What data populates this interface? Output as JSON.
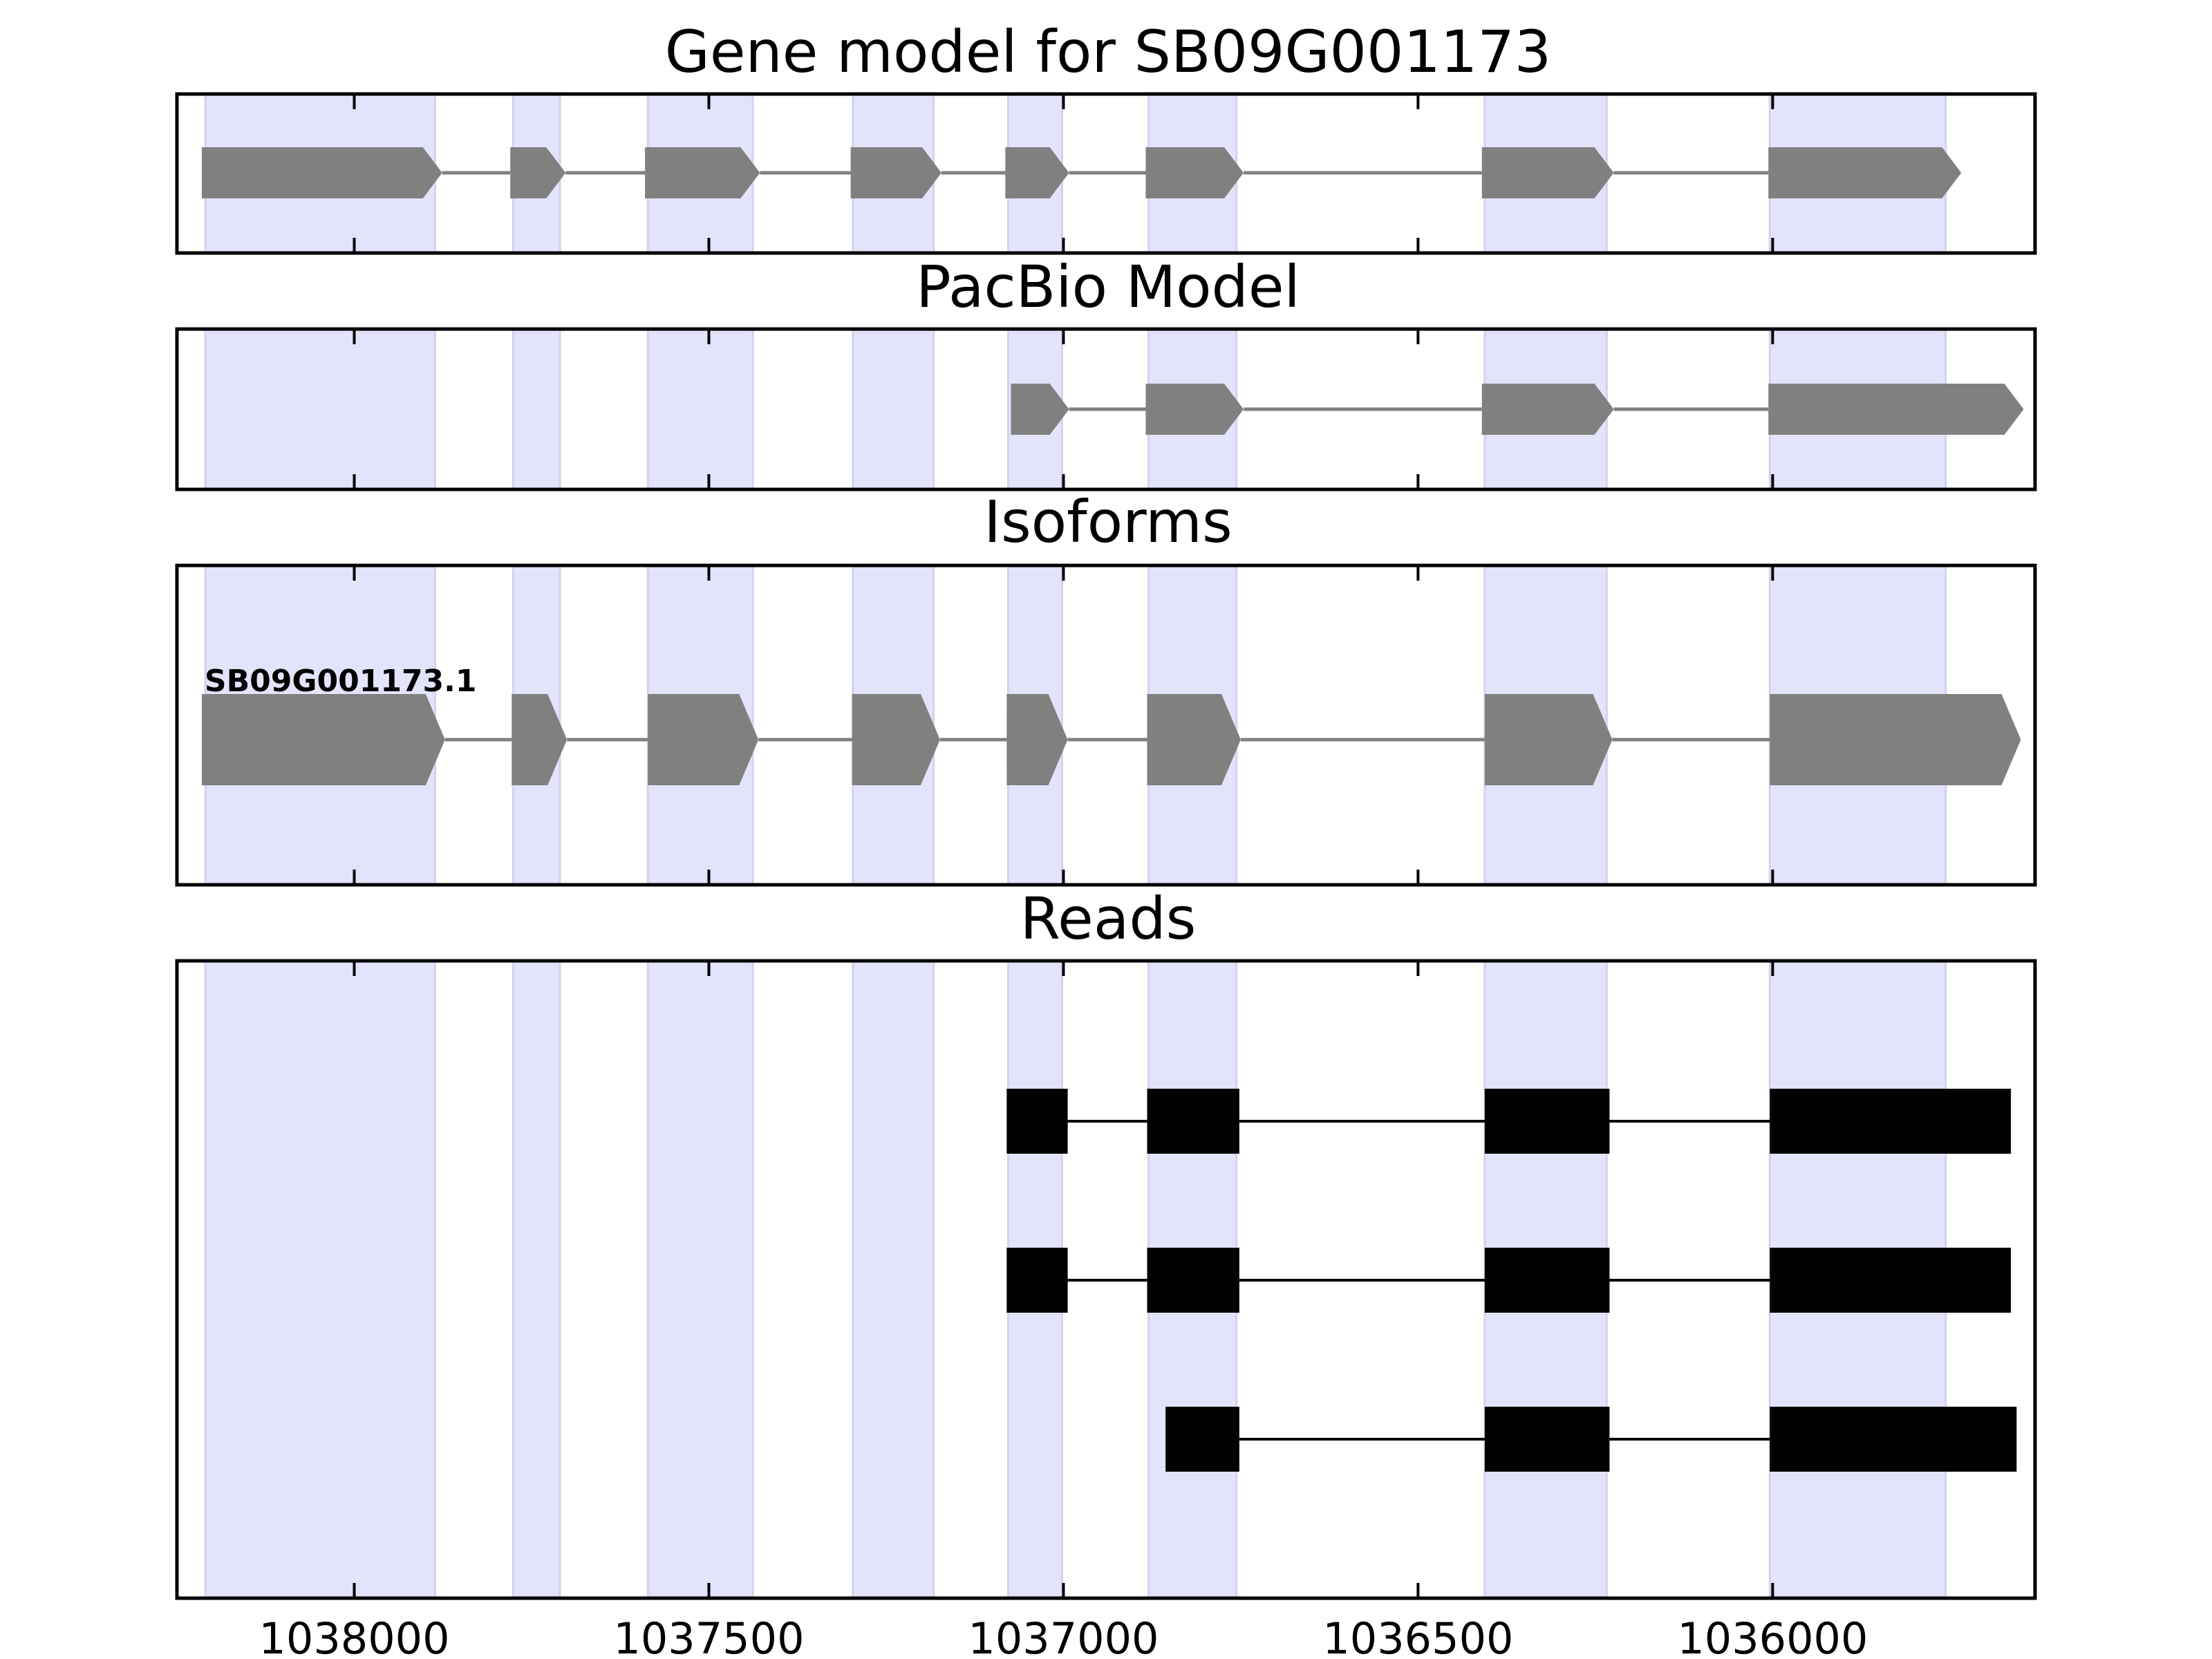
{
  "chart_data": {
    "type": "gene-structure",
    "x_axis": {
      "range": [
        1038250,
        1035630
      ],
      "ticks": [
        1038000,
        1037500,
        1037000,
        1036500,
        1036000
      ],
      "tick_labels": [
        "1038000",
        "1037500",
        "1037000",
        "1036500",
        "1036000"
      ]
    },
    "highlight_color": "#e3e3fc",
    "feature_color": "#808080",
    "read_color": "#000000",
    "shaded_exons": [
      [
        1038210,
        1037886
      ],
      [
        1037776,
        1037710
      ],
      [
        1037586,
        1037438
      ],
      [
        1037297,
        1037183
      ],
      [
        1037078,
        1037002
      ],
      [
        1036880,
        1036756
      ],
      [
        1036406,
        1036234
      ],
      [
        1036004,
        1035756
      ]
    ],
    "panels": [
      {
        "title": "Gene model for SB09G001173",
        "tracks": [
          {
            "label": "",
            "exons": [
              [
                1038215,
                1037876
              ],
              [
                1037780,
                1037702
              ],
              [
                1037590,
                1037428
              ],
              [
                1037300,
                1037172
              ],
              [
                1037082,
                1036992
              ],
              [
                1036884,
                1036746
              ],
              [
                1036410,
                1036224
              ],
              [
                1036006,
                1035734
              ]
            ]
          }
        ]
      },
      {
        "title": "PacBio Model",
        "tracks": [
          {
            "label": "",
            "exons": [
              [
                1037074,
                1036992
              ],
              [
                1036884,
                1036746
              ],
              [
                1036410,
                1036224
              ],
              [
                1036006,
                1035646
              ]
            ]
          }
        ]
      },
      {
        "title": "Isoforms",
        "tracks": [
          {
            "label": "SB09G001173.1",
            "exons": [
              [
                1038215,
                1037872
              ],
              [
                1037778,
                1037700
              ],
              [
                1037586,
                1037430
              ],
              [
                1037298,
                1037174
              ],
              [
                1037080,
                1036994
              ],
              [
                1036882,
                1036750
              ],
              [
                1036406,
                1036226
              ],
              [
                1036004,
                1035650
              ]
            ]
          }
        ]
      },
      {
        "title": "Reads",
        "tracks": [
          {
            "exons": [
              [
                1037080,
                1036994
              ],
              [
                1036882,
                1036752
              ],
              [
                1036406,
                1036230
              ],
              [
                1036004,
                1035664
              ]
            ]
          },
          {
            "exons": [
              [
                1037080,
                1036994
              ],
              [
                1036882,
                1036752
              ],
              [
                1036406,
                1036230
              ],
              [
                1036004,
                1035664
              ]
            ]
          },
          {
            "exons": [
              [
                1036856,
                1036752
              ],
              [
                1036406,
                1036230
              ],
              [
                1036004,
                1035656
              ]
            ]
          }
        ]
      }
    ]
  }
}
